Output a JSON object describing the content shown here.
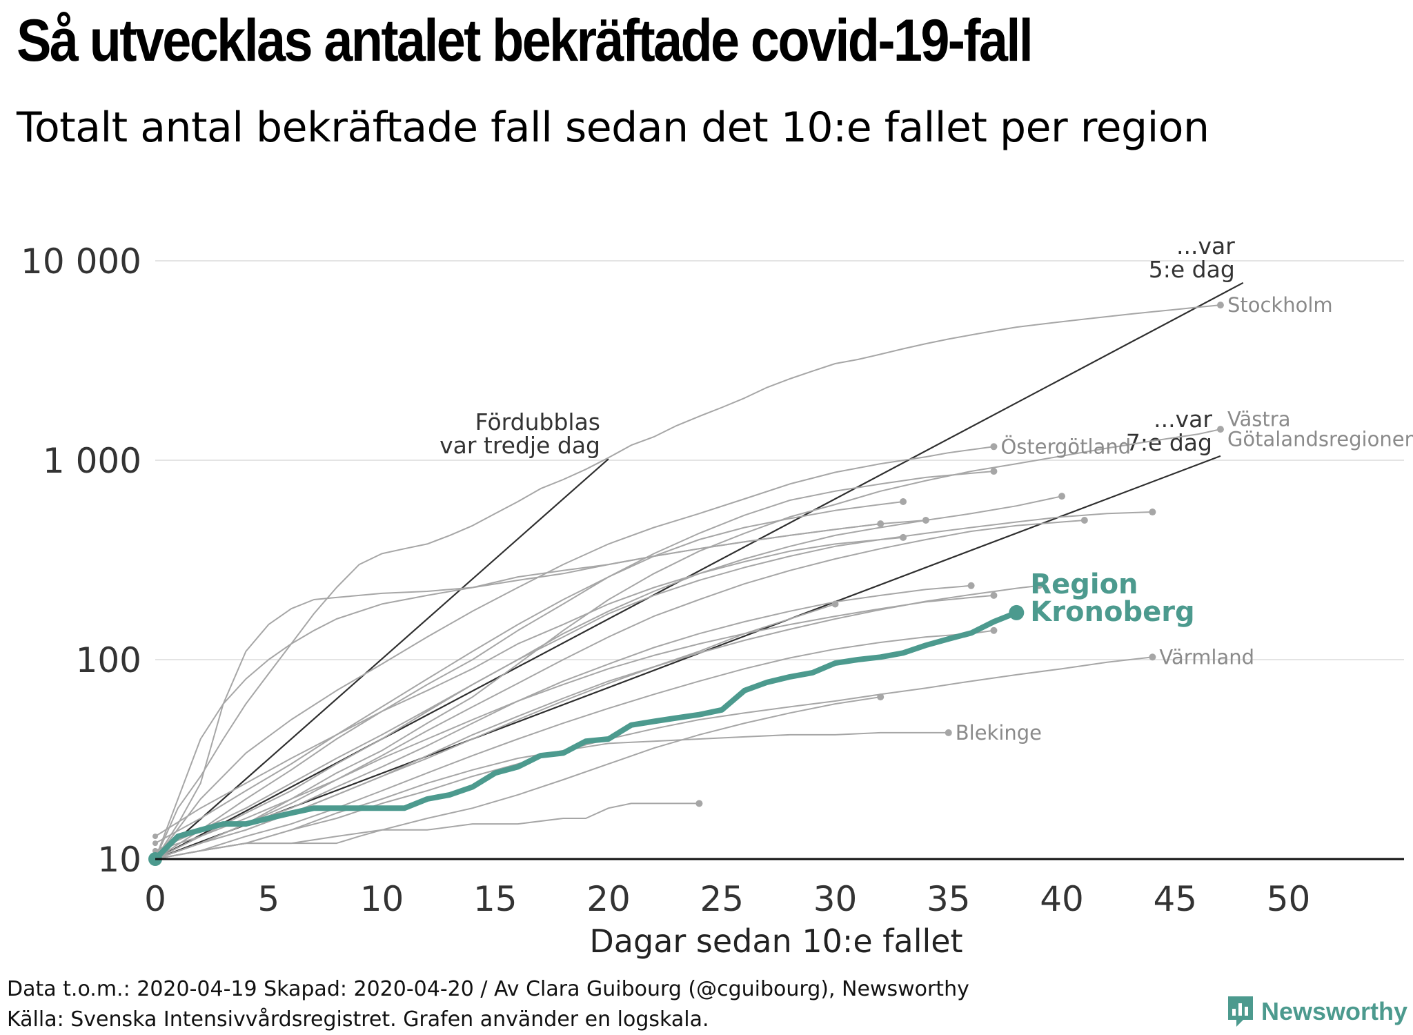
{
  "header": {
    "title": "Så utvecklas antalet bekräftade covid-19-fall",
    "subtitle": "Totalt antal bekräftade fall sedan det 10:e fallet per region"
  },
  "footer": {
    "line1": "Data t.o.m.: 2020-04-19 Skapad: 2020-04-20 / Av Clara Guibourg (@cguibourg), Newsworthy",
    "line2": "Källa: Svenska Intensivvårdsregistret. Grafen använder en logskala."
  },
  "brand": {
    "name": "Newsworthy",
    "color": "#4c9a8e"
  },
  "chart_data": {
    "type": "line",
    "title": "Så utvecklas antalet bekräftade covid-19-fall",
    "subtitle": "Totalt antal bekräftade fall sedan det 10:e fallet per region",
    "xlabel": "Dagar sedan 10:e fallet",
    "ylabel": "",
    "yscale": "log",
    "xlim": [
      0,
      55
    ],
    "ylim": [
      10,
      22000
    ],
    "xticks": [
      {
        "v": 0,
        "label": "0"
      },
      {
        "v": 5,
        "label": "5"
      },
      {
        "v": 10,
        "label": "10"
      },
      {
        "v": 15,
        "label": "15"
      },
      {
        "v": 20,
        "label": "20"
      },
      {
        "v": 25,
        "label": "25"
      },
      {
        "v": 30,
        "label": "30"
      },
      {
        "v": 35,
        "label": "35"
      },
      {
        "v": 40,
        "label": "40"
      },
      {
        "v": 45,
        "label": "45"
      },
      {
        "v": 50,
        "label": "50"
      }
    ],
    "yticks": [
      {
        "v": 10,
        "label": "10"
      },
      {
        "v": 100,
        "label": "100"
      },
      {
        "v": 1000,
        "label": "1 000"
      },
      {
        "v": 10000,
        "label": "10 000"
      }
    ],
    "grid": true,
    "colors": {
      "highlight": "#4c9a8e",
      "background_series": "#a6a6a6",
      "reference": "#2e2e2e",
      "grid": "#dcdcdc"
    },
    "reference_lines": [
      {
        "name": "doubling-3-days",
        "label_lines": [
          "Fördubblas",
          "var tredje dag"
        ],
        "doubling_days": 3,
        "x_end": 20
      },
      {
        "name": "doubling-5-days",
        "label_lines": [
          "...var",
          "5:e dag"
        ],
        "doubling_days": 5,
        "x_end": 48
      },
      {
        "name": "doubling-7-days",
        "label_lines": [
          "...var",
          "7:e dag"
        ],
        "doubling_days": 7,
        "x_end": 47
      }
    ],
    "series": [
      {
        "name": "Stockholm",
        "label": "Stockholm",
        "label_lines": [
          "Stockholm"
        ],
        "x": [
          0,
          1,
          2,
          3,
          4,
          5,
          6,
          7,
          8,
          9,
          10,
          11,
          12,
          13,
          14,
          15,
          16,
          17,
          18,
          19,
          20,
          21,
          22,
          23,
          24,
          25,
          26,
          27,
          28,
          29,
          30,
          31,
          32,
          33,
          34,
          35,
          36,
          37,
          38,
          39,
          40,
          41,
          42,
          43,
          44,
          45,
          46,
          47
        ],
        "y": [
          10,
          18,
          26,
          40,
          60,
          85,
          120,
          170,
          230,
          300,
          340,
          360,
          380,
          420,
          470,
          540,
          620,
          720,
          800,
          900,
          1030,
          1190,
          1310,
          1490,
          1660,
          1840,
          2050,
          2320,
          2560,
          2800,
          3050,
          3200,
          3400,
          3620,
          3840,
          4050,
          4250,
          4450,
          4650,
          4800,
          4950,
          5100,
          5250,
          5400,
          5550,
          5700,
          5850,
          6000
        ]
      },
      {
        "name": "Västra Götalandsregionen",
        "label": "Västra Götalandsregionen",
        "label_lines": [
          "Västra",
          "Götalandsregionen"
        ],
        "x": [
          0,
          2,
          4,
          6,
          8,
          10,
          12,
          14,
          16,
          18,
          20,
          22,
          24,
          26,
          28,
          30,
          32,
          34,
          36,
          38,
          40,
          42,
          44,
          46,
          47
        ],
        "y": [
          10,
          12,
          15,
          20,
          27,
          35,
          48,
          65,
          95,
          140,
          200,
          270,
          350,
          430,
          520,
          600,
          700,
          790,
          880,
          960,
          1050,
          1150,
          1250,
          1350,
          1430
        ]
      },
      {
        "name": "Östergötland",
        "label": "Östergötland",
        "label_lines": [
          "Östergötland"
        ],
        "x": [
          0,
          2,
          4,
          6,
          8,
          10,
          12,
          14,
          16,
          18,
          20,
          22,
          24,
          26,
          28,
          30,
          32,
          34,
          35,
          36,
          37
        ],
        "y": [
          10,
          20,
          34,
          50,
          70,
          95,
          130,
          175,
          230,
          300,
          380,
          460,
          540,
          640,
          760,
          870,
          960,
          1040,
          1090,
          1130,
          1170
        ]
      },
      {
        "name": "region-d",
        "label": "",
        "x": [
          0,
          2,
          4,
          6,
          8,
          10,
          12,
          14,
          16,
          18,
          20,
          22,
          24,
          26,
          28,
          30,
          32,
          34,
          36,
          37
        ],
        "y": [
          10,
          14,
          20,
          28,
          40,
          55,
          75,
          100,
          140,
          190,
          260,
          340,
          430,
          530,
          630,
          700,
          760,
          820,
          860,
          880
        ]
      },
      {
        "name": "region-e",
        "label": "",
        "x": [
          0,
          2,
          4,
          6,
          8,
          10,
          12,
          14,
          16,
          18,
          20,
          22,
          24,
          26,
          28,
          30,
          32,
          33
        ],
        "y": [
          12,
          16,
          22,
          30,
          42,
          58,
          80,
          110,
          150,
          200,
          260,
          330,
          400,
          460,
          510,
          560,
          600,
          620
        ]
      },
      {
        "name": "region-f",
        "label": "",
        "x": [
          0,
          2,
          4,
          6,
          8,
          10,
          12,
          14,
          16,
          18,
          20,
          22,
          24,
          26,
          28,
          30,
          32,
          34,
          36,
          38,
          40
        ],
        "y": [
          10,
          13,
          17,
          22,
          30,
          40,
          55,
          75,
          100,
          135,
          175,
          220,
          270,
          320,
          370,
          420,
          460,
          500,
          540,
          590,
          660
        ]
      },
      {
        "name": "region-g",
        "label": "",
        "x": [
          0,
          2,
          4,
          6,
          8,
          10,
          12,
          14,
          16,
          18,
          20,
          22,
          24,
          26,
          28,
          30,
          32,
          34,
          36,
          38,
          40,
          42,
          44
        ],
        "y": [
          11,
          14,
          18,
          24,
          32,
          42,
          56,
          75,
          100,
          130,
          170,
          210,
          250,
          290,
          330,
          370,
          400,
          430,
          460,
          490,
          520,
          540,
          550
        ]
      },
      {
        "name": "region-h",
        "label": "",
        "x": [
          0,
          2,
          4,
          6,
          8,
          10,
          12,
          14,
          16,
          18,
          20,
          22,
          24,
          26,
          28,
          30,
          32,
          34,
          36,
          38,
          40,
          41
        ],
        "y": [
          10,
          12,
          15,
          19,
          25,
          33,
          44,
          58,
          76,
          100,
          130,
          165,
          200,
          240,
          280,
          320,
          360,
          400,
          440,
          470,
          490,
          500
        ]
      },
      {
        "name": "region-i",
        "label": "",
        "x": [
          0,
          1,
          2,
          3,
          4,
          5,
          6,
          7,
          8,
          9,
          10,
          12,
          14,
          16,
          18,
          20,
          22,
          24,
          26,
          28,
          30,
          32,
          34
        ],
        "y": [
          10,
          15,
          24,
          60,
          110,
          150,
          180,
          200,
          205,
          210,
          215,
          220,
          230,
          250,
          270,
          300,
          330,
          360,
          390,
          420,
          450,
          480,
          500
        ]
      },
      {
        "name": "region-j",
        "label": "",
        "x": [
          0,
          1,
          2,
          3,
          4,
          5,
          6,
          7,
          8,
          10,
          12,
          14,
          16,
          18,
          20,
          22,
          24,
          26,
          28,
          30,
          32
        ],
        "y": [
          10,
          20,
          40,
          60,
          80,
          100,
          120,
          140,
          160,
          190,
          210,
          230,
          260,
          280,
          300,
          330,
          360,
          390,
          420,
          450,
          480
        ]
      },
      {
        "name": "region-k",
        "label": "",
        "x": [
          0,
          2,
          4,
          6,
          8,
          10,
          12,
          14,
          16,
          18,
          20,
          22,
          24,
          26,
          28,
          30,
          32,
          33
        ],
        "y": [
          13,
          18,
          24,
          32,
          42,
          55,
          70,
          90,
          120,
          150,
          190,
          230,
          270,
          310,
          350,
          380,
          400,
          410
        ]
      },
      {
        "name": "region-l",
        "label": "",
        "x": [
          0,
          2,
          4,
          6,
          8,
          10,
          12,
          14,
          16,
          18,
          20,
          22,
          24,
          26,
          28,
          30,
          32,
          34,
          36
        ],
        "y": [
          10,
          12,
          15,
          18,
          23,
          29,
          37,
          48,
          62,
          78,
          95,
          115,
          135,
          155,
          175,
          195,
          210,
          225,
          235
        ]
      },
      {
        "name": "region-m",
        "label": "",
        "x": [
          0,
          2,
          4,
          6,
          8,
          10,
          12,
          14,
          16,
          18,
          20,
          22,
          24,
          26,
          28,
          30,
          32,
          34,
          36,
          37
        ],
        "y": [
          11,
          13,
          16,
          20,
          25,
          32,
          40,
          50,
          62,
          75,
          90,
          105,
          120,
          135,
          150,
          165,
          180,
          195,
          205,
          210
        ]
      },
      {
        "name": "region-n",
        "label": "",
        "x": [
          0,
          2,
          4,
          6,
          8,
          10,
          12,
          14,
          16,
          18,
          20,
          22,
          24,
          26,
          28,
          30,
          32,
          34,
          36,
          38,
          39
        ],
        "y": [
          10,
          12,
          14,
          17,
          21,
          26,
          33,
          42,
          52,
          64,
          78,
          92,
          108,
          125,
          142,
          160,
          178,
          196,
          212,
          228,
          235
        ]
      },
      {
        "name": "region-o",
        "label": "",
        "x": [
          0,
          2,
          4,
          6,
          8,
          10,
          12,
          14,
          16,
          18,
          20,
          22,
          24,
          26,
          28,
          30
        ],
        "y": [
          10,
          12,
          14,
          17,
          21,
          26,
          32,
          40,
          50,
          62,
          76,
          92,
          110,
          135,
          160,
          190
        ]
      },
      {
        "name": "region-p",
        "label": "",
        "x": [
          0,
          2,
          4,
          6,
          8,
          10,
          12,
          14,
          16,
          18,
          20,
          22,
          24,
          26,
          28,
          30,
          32,
          34,
          36,
          37
        ],
        "y": [
          10,
          11,
          13,
          15,
          18,
          22,
          27,
          33,
          40,
          48,
          57,
          67,
          78,
          90,
          102,
          113,
          122,
          130,
          135,
          140
        ]
      },
      {
        "name": "Värmland",
        "label": "Värmland",
        "label_lines": [
          "Värmland"
        ],
        "x": [
          0,
          2,
          4,
          6,
          8,
          10,
          12,
          14,
          16,
          18,
          20,
          22,
          24,
          26,
          28,
          30,
          32,
          34,
          36,
          38,
          40,
          42,
          44
        ],
        "y": [
          10,
          11,
          12,
          14,
          16,
          19,
          22,
          26,
          30,
          35,
          40,
          45,
          50,
          54,
          58,
          62,
          67,
          72,
          78,
          84,
          90,
          97,
          103
        ]
      },
      {
        "name": "Blekinge",
        "label": "Blekinge",
        "label_lines": [
          "Blekinge"
        ],
        "x": [
          0,
          2,
          4,
          6,
          8,
          10,
          12,
          14,
          16,
          18,
          20,
          22,
          24,
          26,
          28,
          30,
          32,
          34,
          35
        ],
        "y": [
          10,
          11,
          12,
          14,
          17,
          20,
          24,
          28,
          32,
          35,
          38,
          39,
          40,
          41,
          42,
          42,
          43,
          43,
          43
        ]
      },
      {
        "name": "region-s",
        "label": "",
        "x": [
          0,
          2,
          4,
          6,
          8,
          10,
          12,
          14,
          16,
          18,
          19,
          20,
          21,
          22,
          23,
          24
        ],
        "y": [
          10,
          11,
          12,
          12,
          13,
          14,
          14,
          15,
          15,
          16,
          16,
          18,
          19,
          19,
          19,
          19
        ]
      },
      {
        "name": "region-t",
        "label": "",
        "x": [
          0,
          2,
          4,
          6,
          8,
          9,
          10,
          12,
          14,
          16,
          18,
          20,
          22,
          24,
          26,
          28,
          30,
          32
        ],
        "y": [
          10,
          11,
          12,
          12,
          12,
          13,
          14,
          16,
          18,
          21,
          25,
          30,
          36,
          42,
          48,
          54,
          60,
          65
        ]
      },
      {
        "name": "Region Kronoberg",
        "label": "Region Kronoberg",
        "label_lines": [
          "Region",
          "Kronoberg"
        ],
        "highlight": true,
        "x": [
          0,
          1,
          2,
          3,
          4,
          5,
          6,
          7,
          8,
          9,
          10,
          11,
          12,
          13,
          14,
          15,
          16,
          17,
          18,
          19,
          20,
          21,
          22,
          23,
          24,
          25,
          26,
          27,
          28,
          29,
          30,
          31,
          32,
          33,
          34,
          35,
          36,
          37,
          38
        ],
        "y": [
          10,
          13,
          14,
          15,
          15,
          16,
          17,
          18,
          18,
          18,
          18,
          18,
          20,
          21,
          23,
          27,
          29,
          33,
          34,
          39,
          40,
          47,
          49,
          51,
          53,
          56,
          70,
          77,
          82,
          86,
          96,
          100,
          103,
          108,
          118,
          127,
          136,
          155,
          172
        ]
      }
    ]
  }
}
